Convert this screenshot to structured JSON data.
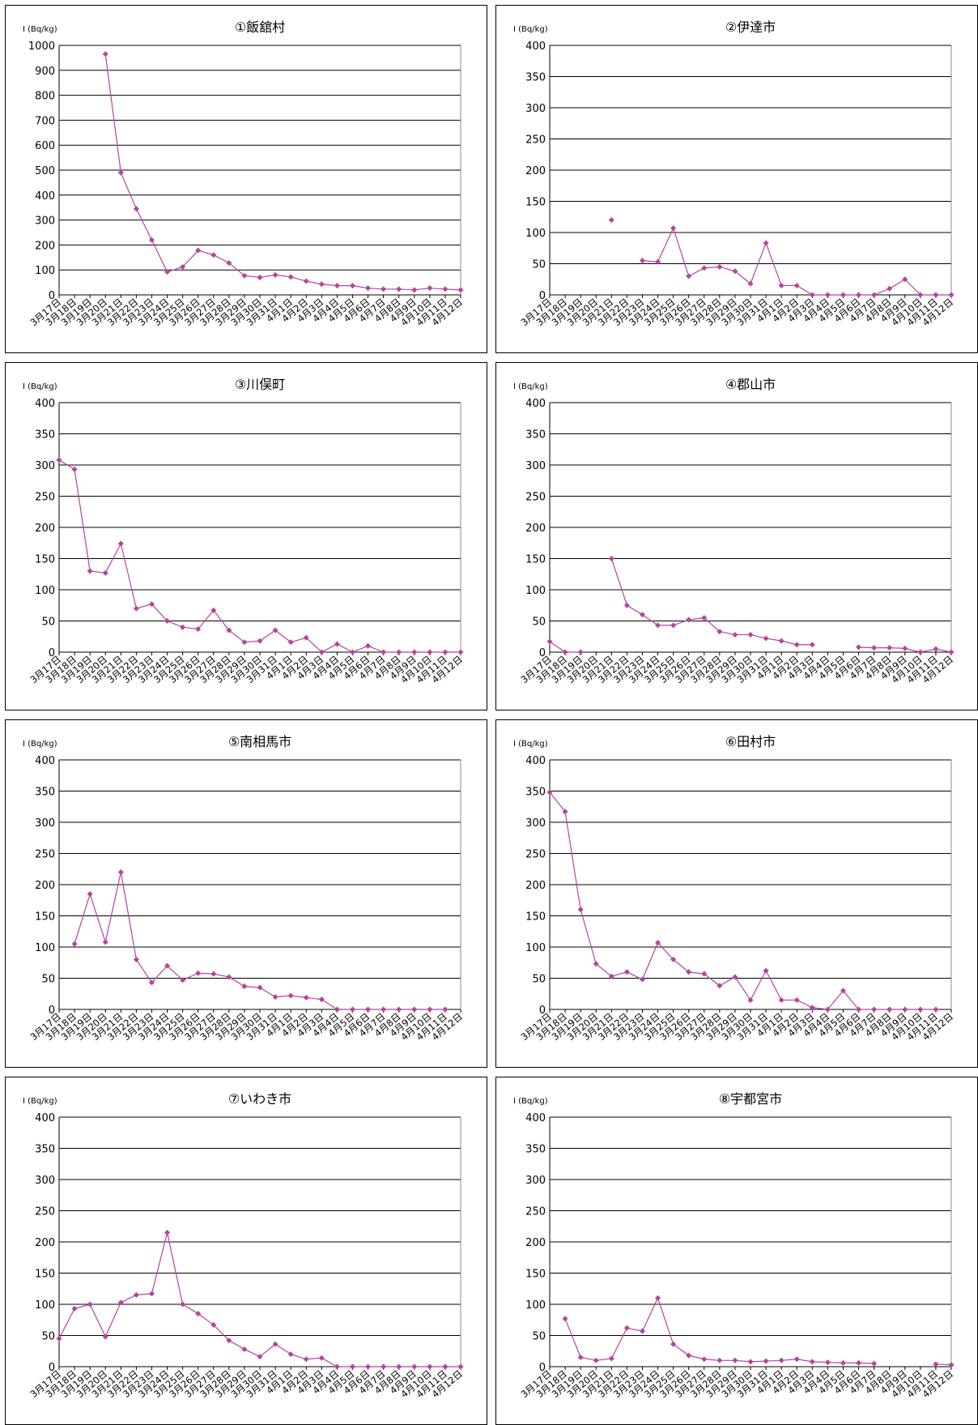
{
  "chart_data": [
    {
      "type": "line",
      "title": "①飯舘村",
      "y_label": "I (Bq/kg)",
      "color": "#b4449f",
      "categories": [
        "3月17日",
        "3月18日",
        "3月19日",
        "3月20日",
        "3月21日",
        "3月22日",
        "3月23日",
        "3月24日",
        "3月25日",
        "3月26日",
        "3月27日",
        "3月28日",
        "3月29日",
        "3月30日",
        "3月31日",
        "4月1日",
        "4月2日",
        "4月3日",
        "4月4日",
        "4月5日",
        "4月6日",
        "4月7日",
        "4月8日",
        "4月9日",
        "4月10日",
        "4月11日",
        "4月12日"
      ],
      "values": [
        null,
        null,
        null,
        965,
        490,
        345,
        220,
        92,
        112,
        178,
        160,
        128,
        77,
        70,
        80,
        72,
        55,
        43,
        37,
        37,
        27,
        23,
        23,
        20,
        27,
        23,
        20
      ],
      "ylim": [
        0,
        1000
      ],
      "yticks": [
        0,
        100,
        200,
        300,
        400,
        500,
        600,
        700,
        800,
        900,
        1000
      ],
      "grid": true
    },
    {
      "type": "line",
      "title": "②伊達市",
      "y_label": "I (Bq/kg)",
      "color": "#b4449f",
      "categories": [
        "3月17日",
        "3月18日",
        "3月19日",
        "3月20日",
        "3月21日",
        "3月22日",
        "3月23日",
        "3月24日",
        "3月25日",
        "3月26日",
        "3月27日",
        "3月28日",
        "3月29日",
        "3月30日",
        "3月31日",
        "4月1日",
        "4月2日",
        "4月3日",
        "4月4日",
        "4月5日",
        "4月6日",
        "4月7日",
        "4月8日",
        "4月9日",
        "4月10日",
        "4月11日",
        "4月12日"
      ],
      "values": [
        null,
        null,
        null,
        null,
        120,
        null,
        55,
        53,
        107,
        30,
        43,
        45,
        38,
        18,
        83,
        15,
        15,
        0,
        0,
        0,
        0,
        0,
        10,
        25,
        0,
        0,
        0
      ],
      "ylim": [
        0,
        400
      ],
      "yticks": [
        0,
        50,
        100,
        150,
        200,
        250,
        300,
        350,
        400
      ],
      "grid": true
    },
    {
      "type": "line",
      "title": "③川俣町",
      "y_label": "I (Bq/kg)",
      "color": "#b4449f",
      "categories": [
        "3月17日",
        "3月18日",
        "3月19日",
        "3月20日",
        "3月21日",
        "3月22日",
        "3月23日",
        "3月24日",
        "3月25日",
        "3月26日",
        "3月27日",
        "3月28日",
        "3月29日",
        "3月30日",
        "3月31日",
        "4月1日",
        "4月2日",
        "4月3日",
        "4月4日",
        "4月5日",
        "4月6日",
        "4月7日",
        "4月8日",
        "4月9日",
        "4月10日",
        "4月11日",
        "4月12日"
      ],
      "values": [
        308,
        293,
        130,
        127,
        174,
        70,
        77,
        50,
        40,
        37,
        67,
        35,
        16,
        18,
        35,
        16,
        23,
        0,
        13,
        0,
        10,
        0,
        0,
        0,
        0,
        0,
        0
      ],
      "ylim": [
        0,
        400
      ],
      "yticks": [
        0,
        50,
        100,
        150,
        200,
        250,
        300,
        350,
        400
      ],
      "grid": true
    },
    {
      "type": "line",
      "title": "④郡山市",
      "y_label": "I (Bq/kg)",
      "color": "#b4449f",
      "categories": [
        "3月17日",
        "3月18日",
        "3月19日",
        "3月20日",
        "3月21日",
        "3月22日",
        "3月23日",
        "3月24日",
        "3月25日",
        "3月26日",
        "3月27日",
        "3月28日",
        "3月29日",
        "3月30日",
        "3月31日",
        "4月1日",
        "4月2日",
        "4月3日",
        "4月4日",
        "4月5日",
        "4月6日",
        "4月7日",
        "4月8日",
        "4月9日",
        "4月10日",
        "4月11日",
        "4月12日"
      ],
      "values": [
        17,
        0,
        0,
        null,
        150,
        75,
        60,
        43,
        43,
        52,
        55,
        33,
        28,
        28,
        22,
        18,
        12,
        12,
        null,
        null,
        8,
        7,
        7,
        6,
        0,
        5,
        0
      ],
      "ylim": [
        0,
        400
      ],
      "yticks": [
        0,
        50,
        100,
        150,
        200,
        250,
        300,
        350,
        400
      ],
      "grid": true
    },
    {
      "type": "line",
      "title": "⑤南相馬市",
      "y_label": "I (Bq/kg)",
      "color": "#b4449f",
      "categories": [
        "3月17日",
        "3月18日",
        "3月19日",
        "3月20日",
        "3月21日",
        "3月22日",
        "3月23日",
        "3月24日",
        "3月25日",
        "3月26日",
        "3月27日",
        "3月28日",
        "3月29日",
        "3月30日",
        "3月31日",
        "4月1日",
        "4月2日",
        "4月3日",
        "4月4日",
        "4月5日",
        "4月6日",
        "4月7日",
        "4月8日",
        "4月9日",
        "4月10日",
        "4月11日",
        "4月12日"
      ],
      "values": [
        null,
        105,
        185,
        108,
        220,
        80,
        43,
        70,
        47,
        58,
        57,
        52,
        37,
        35,
        20,
        22,
        19,
        16,
        0,
        0,
        0,
        0,
        0,
        0,
        0,
        0,
        null
      ],
      "ylim": [
        0,
        400
      ],
      "yticks": [
        0,
        50,
        100,
        150,
        200,
        250,
        300,
        350,
        400
      ],
      "grid": true
    },
    {
      "type": "line",
      "title": "⑥田村市",
      "y_label": "I (Bq/kg)",
      "color": "#b4449f",
      "categories": [
        "3月17日",
        "3月18日",
        "3月19日",
        "3月20日",
        "3月21日",
        "3月22日",
        "3月23日",
        "3月24日",
        "3月25日",
        "3月26日",
        "3月27日",
        "3月28日",
        "3月29日",
        "3月30日",
        "3月31日",
        "4月1日",
        "4月2日",
        "4月3日",
        "4月4日",
        "4月5日",
        "4月6日",
        "4月7日",
        "4月8日",
        "4月9日",
        "4月10日",
        "4月11日",
        "4月12日"
      ],
      "values": [
        348,
        317,
        160,
        73,
        53,
        60,
        48,
        107,
        80,
        60,
        57,
        38,
        52,
        15,
        62,
        15,
        15,
        3,
        0,
        30,
        0,
        0,
        0,
        0,
        0,
        0,
        null
      ],
      "ylim": [
        0,
        400
      ],
      "yticks": [
        0,
        50,
        100,
        150,
        200,
        250,
        300,
        350,
        400
      ],
      "grid": true
    },
    {
      "type": "line",
      "title": "⑦いわき市",
      "y_label": "I (Bq/kg)",
      "color": "#b4449f",
      "categories": [
        "3月17日",
        "3月18日",
        "3月19日",
        "3月20日",
        "3月21日",
        "3月22日",
        "3月23日",
        "3月24日",
        "3月25日",
        "3月26日",
        "3月27日",
        "3月28日",
        "3月29日",
        "3月30日",
        "3月31日",
        "4月1日",
        "4月2日",
        "4月3日",
        "4月4日",
        "4月5日",
        "4月6日",
        "4月7日",
        "4月8日",
        "4月9日",
        "4月10日",
        "4月11日",
        "4月12日"
      ],
      "values": [
        45,
        93,
        100,
        48,
        103,
        115,
        117,
        215,
        100,
        85,
        67,
        42,
        28,
        16,
        36,
        20,
        12,
        14,
        0,
        0,
        0,
        0,
        0,
        0,
        0,
        0,
        0
      ],
      "ylim": [
        0,
        400
      ],
      "yticks": [
        0,
        50,
        100,
        150,
        200,
        250,
        300,
        350,
        400
      ],
      "grid": true
    },
    {
      "type": "line",
      "title": "⑧宇都宮市",
      "y_label": "I (Bq/kg)",
      "color": "#b4449f",
      "categories": [
        "3月17日",
        "3月18日",
        "3月19日",
        "3月20日",
        "3月21日",
        "3月22日",
        "3月23日",
        "3月24日",
        "3月25日",
        "3月26日",
        "3月27日",
        "3月28日",
        "3月29日",
        "3月30日",
        "3月31日",
        "4月1日",
        "4月2日",
        "4月3日",
        "4月4日",
        "4月5日",
        "4月6日",
        "4月7日",
        "4月8日",
        "4月9日",
        "4月10日",
        "4月11日",
        "4月12日"
      ],
      "values": [
        null,
        77,
        15,
        10,
        13,
        62,
        57,
        110,
        36,
        18,
        12,
        10,
        10,
        8,
        9,
        10,
        12,
        8,
        7,
        6,
        6,
        5,
        null,
        null,
        null,
        4,
        3
      ],
      "ylim": [
        0,
        400
      ],
      "yticks": [
        0,
        50,
        100,
        150,
        200,
        250,
        300,
        350,
        400
      ],
      "grid": true
    }
  ]
}
